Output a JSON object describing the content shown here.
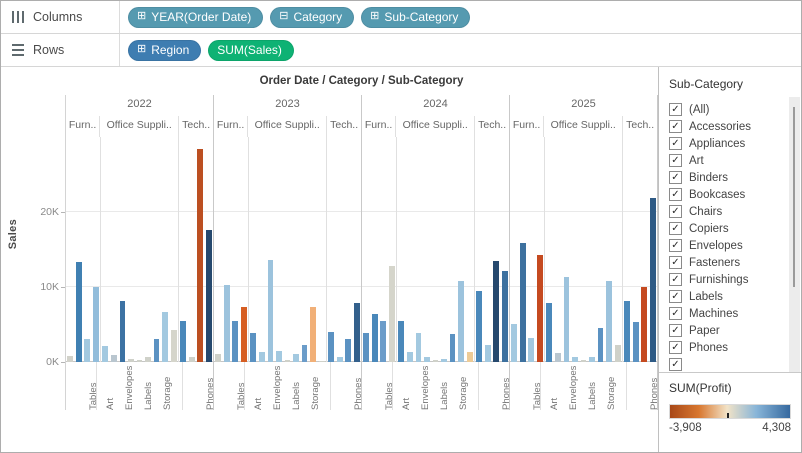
{
  "shelves": {
    "columns": {
      "label": "Columns",
      "pills": [
        {
          "label": "YEAR(Order Date)",
          "icon": "expand-plus-icon",
          "glyph": "⊞",
          "color": "#559ab0"
        },
        {
          "label": "Category",
          "icon": "collapse-minus-icon",
          "glyph": "⊟",
          "color": "#559ab0"
        },
        {
          "label": "Sub-Category",
          "icon": "expand-plus-icon",
          "glyph": "⊞",
          "color": "#559ab0"
        }
      ]
    },
    "rows": {
      "label": "Rows",
      "pills": [
        {
          "label": "Region",
          "icon": "expand-plus-icon",
          "glyph": "⊞",
          "color": "#3e7db1"
        },
        {
          "label": "SUM(Sales)",
          "icon": "",
          "glyph": "",
          "color": "#0eb274"
        }
      ]
    }
  },
  "chart_data": {
    "type": "bar",
    "title": "Order Date / Category / Sub-Category",
    "ylabel": "Sales",
    "yticks": [
      {
        "label": "0K",
        "value_k": 0
      },
      {
        "label": "10K",
        "value_k": 10
      },
      {
        "label": "20K",
        "value_k": 20
      }
    ],
    "ymax_k": 30,
    "grid": true,
    "value_unit": "K",
    "years": [
      {
        "year": "2022",
        "panels": [
          {
            "category": "Furn..",
            "values_k": [
              0.8,
              13.3,
              3.0,
              10.0
            ],
            "colors": [
              "#d2d2ca",
              "#4080b2",
              "#a3c9e0",
              "#92bddb"
            ],
            "xlabels": [
              "",
              "",
              "",
              "Tables"
            ]
          },
          {
            "category": "Office Suppli..",
            "values_k": [
              2.1,
              0.9,
              8.2,
              0.4,
              0.2,
              0.6,
              3.0,
              6.7,
              4.2
            ],
            "colors": [
              "#a3c9e0",
              "#b9c6cf",
              "#3c72a3",
              "#cfd1c9",
              "#cfd1c9",
              "#cfd1c9",
              "#5b92c2",
              "#a3c9e0",
              "#d5d5cb"
            ],
            "xlabels": [
              "",
              "Art",
              "",
              "Envelopes",
              "",
              "Labels",
              "",
              "Storage",
              ""
            ]
          },
          {
            "category": "Tech..",
            "values_k": [
              5.5,
              0.6,
              28.4,
              17.6
            ],
            "colors": [
              "#4a88ba",
              "#cfd1c9",
              "#bc4f21",
              "#26496e"
            ],
            "xlabels": [
              "",
              "",
              "",
              "Phones"
            ]
          }
        ]
      },
      {
        "year": "2023",
        "panels": [
          {
            "category": "Furn..",
            "values_k": [
              1.0,
              10.3,
              5.4,
              7.3
            ],
            "colors": [
              "#cfd1c9",
              "#9cc3dd",
              "#5b92c2",
              "#d65e23"
            ],
            "xlabels": [
              "",
              "",
              "",
              "Tables"
            ]
          },
          {
            "category": "Office Suppli..",
            "values_k": [
              3.8,
              1.3,
              13.6,
              1.5,
              0.2,
              1.0,
              2.3,
              7.3,
              0.1
            ],
            "colors": [
              "#5b92c2",
              "#a3c9e0",
              "#9cc3dd",
              "#a3c9e0",
              "#cfd1c9",
              "#a3c9e0",
              "#6b9cc9",
              "#f1b078",
              "#cfd1c9"
            ],
            "xlabels": [
              "",
              "Art",
              "",
              "Envelopes",
              "",
              "Labels",
              "",
              "Storage",
              ""
            ]
          },
          {
            "category": "Tech..",
            "values_k": [
              4.0,
              0.7,
              3.0,
              7.9
            ],
            "colors": [
              "#5b92c2",
              "#a3c9e0",
              "#5b92c2",
              "#33608c"
            ],
            "xlabels": [
              "",
              "",
              "",
              "Phones"
            ]
          }
        ]
      },
      {
        "year": "2024",
        "panels": [
          {
            "category": "Furn..",
            "values_k": [
              3.8,
              6.4,
              5.5,
              12.8
            ],
            "colors": [
              "#5b92c2",
              "#4a88ba",
              "#6b9cc9",
              "#d5d5cb"
            ],
            "xlabels": [
              "",
              "",
              "",
              "Tables"
            ]
          },
          {
            "category": "Office Suppli..",
            "values_k": [
              5.5,
              1.3,
              3.9,
              0.7,
              0.2,
              0.4,
              3.7,
              10.8,
              1.3
            ],
            "colors": [
              "#4a88ba",
              "#a3c9e0",
              "#a3c9e0",
              "#a3c9e0",
              "#cfd1c9",
              "#a3c9e0",
              "#5b92c2",
              "#9cc3dd",
              "#edcb96"
            ],
            "xlabels": [
              "",
              "Art",
              "",
              "Envelopes",
              "",
              "Labels",
              "",
              "Storage",
              ""
            ]
          },
          {
            "category": "Tech..",
            "values_k": [
              9.4,
              2.3,
              13.4,
              12.1
            ],
            "colors": [
              "#4a88ba",
              "#a3c9e0",
              "#26496e",
              "#3d719f"
            ],
            "xlabels": [
              "",
              "",
              "",
              "Phones"
            ]
          }
        ]
      },
      {
        "year": "2025",
        "panels": [
          {
            "category": "Furn..",
            "values_k": [
              5.0,
              15.9,
              3.2,
              14.3
            ],
            "colors": [
              "#a3c9e0",
              "#3d719f",
              "#a3c9e0",
              "#c54a20"
            ],
            "xlabels": [
              "",
              "",
              "",
              "Tables"
            ]
          },
          {
            "category": "Office Suppli..",
            "values_k": [
              7.9,
              1.2,
              11.3,
              0.7,
              0.2,
              0.6,
              4.5,
              10.8,
              2.3
            ],
            "colors": [
              "#4a88ba",
              "#b9c6cf",
              "#9cc3dd",
              "#a3c9e0",
              "#cfd1c9",
              "#a3c9e0",
              "#5b92c2",
              "#9cc3dd",
              "#cfd1c9"
            ],
            "xlabels": [
              "",
              "Art",
              "",
              "Envelopes",
              "",
              "Labels",
              "",
              "Storage",
              ""
            ]
          },
          {
            "category": "Tech..",
            "values_k": [
              8.2,
              5.3,
              10.0,
              21.8
            ],
            "colors": [
              "#4a88ba",
              "#5b92c2",
              "#c54a20",
              "#2e5a85"
            ],
            "xlabels": [
              "",
              "",
              "",
              "Phones"
            ]
          }
        ]
      }
    ]
  },
  "filter_panel": {
    "title": "Sub-Category",
    "check_icon": "checkmark-icon",
    "check_glyph": "✓",
    "items": [
      "(All)",
      "Accessories",
      "Appliances",
      "Art",
      "Binders",
      "Bookcases",
      "Chairs",
      "Copiers",
      "Envelopes",
      "Fasteners",
      "Furnishings",
      "Labels",
      "Machines",
      "Paper",
      "Phones",
      ""
    ]
  },
  "legend": {
    "title": "SUM(Profit)",
    "min_label": "-3,908",
    "max_label": "4,308",
    "gradient": [
      "#a84818",
      "#d8772f",
      "#f2e3c7",
      "#88b5d8",
      "#36699f"
    ],
    "zero_pos_pct": 47.6
  }
}
